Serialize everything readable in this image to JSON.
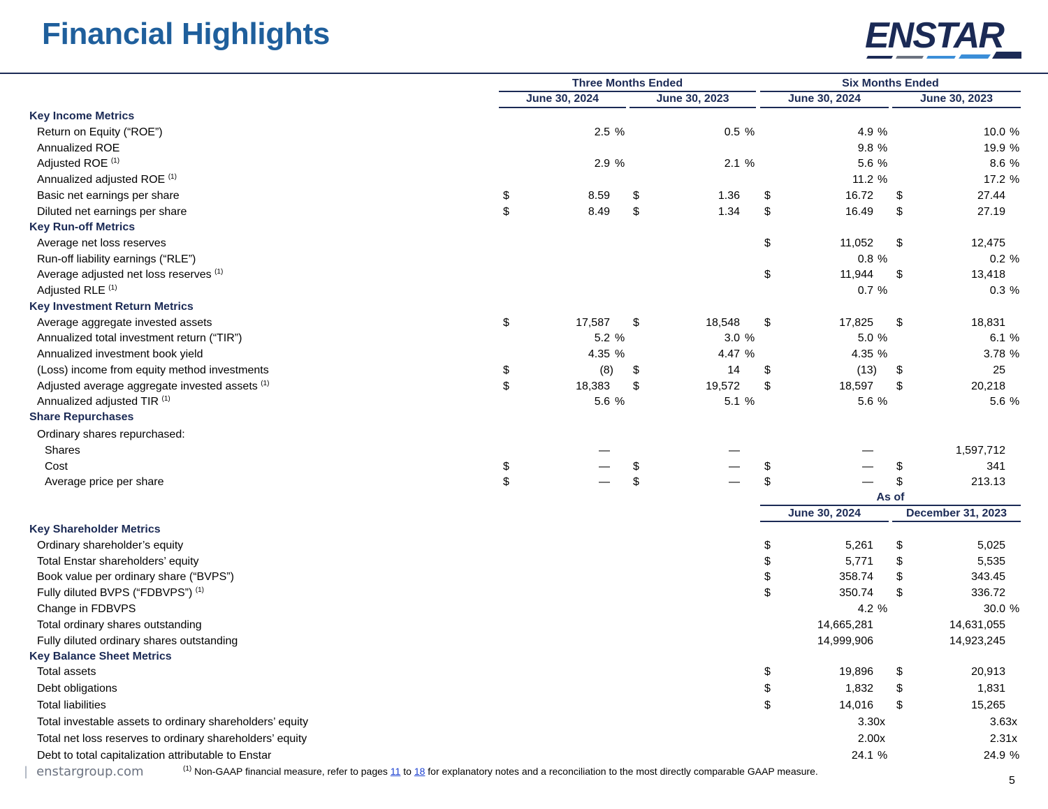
{
  "title": "Financial Highlights",
  "logo": {
    "text": "ENSTAR",
    "color": "#1b2a55",
    "accent": "#3b8ed8"
  },
  "headers": {
    "three_months": "Three Months Ended",
    "six_months": "Six Months Ended",
    "col1": "June 30, 2024",
    "col2": "June 30, 2023",
    "col3": "June 30, 2024",
    "col4": "June 30, 2023",
    "as_of": "As of",
    "as_of_col3": "June 30, 2024",
    "as_of_col4": "December 31, 2023"
  },
  "sections": [
    {
      "title": "Key Income Metrics",
      "rows": [
        {
          "label": "Return on Equity (“ROE”)",
          "sup": "",
          "indent": 1,
          "cells": [
            {
              "v": "2.5",
              "d": false,
              "p": true
            },
            {
              "v": "0.5",
              "d": false,
              "p": true
            },
            {
              "v": "4.9",
              "d": false,
              "p": true
            },
            {
              "v": "10.0",
              "d": false,
              "p": true
            }
          ]
        },
        {
          "label": "Annualized ROE",
          "sup": "",
          "indent": 1,
          "cells": [
            null,
            null,
            {
              "v": "9.8",
              "d": false,
              "p": true
            },
            {
              "v": "19.9",
              "d": false,
              "p": true
            }
          ]
        },
        {
          "label": "Adjusted ROE",
          "sup": "(1)",
          "indent": 1,
          "cells": [
            {
              "v": "2.9",
              "d": false,
              "p": true
            },
            {
              "v": "2.1",
              "d": false,
              "p": true
            },
            {
              "v": "5.6",
              "d": false,
              "p": true
            },
            {
              "v": "8.6",
              "d": false,
              "p": true
            }
          ]
        },
        {
          "label": "Annualized adjusted ROE",
          "sup": "(1)",
          "indent": 1,
          "cells": [
            null,
            null,
            {
              "v": "11.2",
              "d": false,
              "p": true
            },
            {
              "v": "17.2",
              "d": false,
              "p": true
            }
          ]
        },
        {
          "label": "Basic net earnings per share",
          "sup": "",
          "indent": 1,
          "cells": [
            {
              "v": "8.59",
              "d": true,
              "p": false
            },
            {
              "v": "1.36",
              "d": true,
              "p": false
            },
            {
              "v": "16.72",
              "d": true,
              "p": false
            },
            {
              "v": "27.44",
              "d": true,
              "p": false
            }
          ]
        },
        {
          "label": "Diluted net earnings per share",
          "sup": "",
          "indent": 1,
          "cells": [
            {
              "v": "8.49",
              "d": true,
              "p": false
            },
            {
              "v": "1.34",
              "d": true,
              "p": false
            },
            {
              "v": "16.49",
              "d": true,
              "p": false
            },
            {
              "v": "27.19",
              "d": true,
              "p": false
            }
          ]
        }
      ]
    },
    {
      "title": "Key Run-off Metrics",
      "rows": [
        {
          "label": "Average net loss reserves",
          "sup": "",
          "indent": 1,
          "cells": [
            null,
            null,
            {
              "v": "11,052",
              "d": true,
              "p": false
            },
            {
              "v": "12,475",
              "d": true,
              "p": false
            }
          ]
        },
        {
          "label": "Run-off liability earnings (“RLE”)",
          "sup": "",
          "indent": 1,
          "cells": [
            null,
            null,
            {
              "v": "0.8",
              "d": false,
              "p": true
            },
            {
              "v": "0.2",
              "d": false,
              "p": true
            }
          ]
        },
        {
          "label": "Average adjusted net loss reserves",
          "sup": "(1)",
          "indent": 1,
          "cells": [
            null,
            null,
            {
              "v": "11,944",
              "d": true,
              "p": false
            },
            {
              "v": "13,418",
              "d": true,
              "p": false
            }
          ]
        },
        {
          "label": "Adjusted RLE",
          "sup": "(1)",
          "indent": 1,
          "cells": [
            null,
            null,
            {
              "v": "0.7",
              "d": false,
              "p": true
            },
            {
              "v": "0.3",
              "d": false,
              "p": true
            }
          ]
        }
      ]
    },
    {
      "title": "Key Investment Return Metrics",
      "rows": [
        {
          "label": "Average aggregate invested assets",
          "sup": "",
          "indent": 1,
          "cells": [
            {
              "v": "17,587",
              "d": true,
              "p": false
            },
            {
              "v": "18,548",
              "d": true,
              "p": false
            },
            {
              "v": "17,825",
              "d": true,
              "p": false
            },
            {
              "v": "18,831",
              "d": true,
              "p": false
            }
          ]
        },
        {
          "label": "Annualized total investment return (“TIR”)",
          "sup": "",
          "indent": 1,
          "cells": [
            {
              "v": "5.2",
              "d": false,
              "p": true
            },
            {
              "v": "3.0",
              "d": false,
              "p": true
            },
            {
              "v": "5.0",
              "d": false,
              "p": true
            },
            {
              "v": "6.1",
              "d": false,
              "p": true
            }
          ]
        },
        {
          "label": "Annualized investment book yield",
          "sup": "",
          "indent": 1,
          "cells": [
            {
              "v": "4.35",
              "d": false,
              "p": true
            },
            {
              "v": "4.47",
              "d": false,
              "p": true
            },
            {
              "v": "4.35",
              "d": false,
              "p": true
            },
            {
              "v": "3.78",
              "d": false,
              "p": true
            }
          ]
        },
        {
          "label": "(Loss) income from equity method investments",
          "sup": "",
          "indent": 1,
          "cells": [
            {
              "v": "(8)",
              "d": true,
              "p": false,
              "paren": true
            },
            {
              "v": "14",
              "d": true,
              "p": false
            },
            {
              "v": "(13)",
              "d": true,
              "p": false,
              "paren": true
            },
            {
              "v": "25",
              "d": true,
              "p": false
            }
          ]
        },
        {
          "label": "Adjusted average aggregate invested assets",
          "sup": "(1)",
          "indent": 1,
          "cells": [
            {
              "v": "18,383",
              "d": true,
              "p": false
            },
            {
              "v": "19,572",
              "d": true,
              "p": false
            },
            {
              "v": "18,597",
              "d": true,
              "p": false
            },
            {
              "v": "20,218",
              "d": true,
              "p": false
            }
          ]
        },
        {
          "label": "Annualized adjusted TIR",
          "sup": "(1)",
          "indent": 1,
          "cells": [
            {
              "v": "5.6",
              "d": false,
              "p": true
            },
            {
              "v": "5.1",
              "d": false,
              "p": true
            },
            {
              "v": "5.6",
              "d": false,
              "p": true
            },
            {
              "v": "5.6",
              "d": false,
              "p": true
            }
          ]
        }
      ]
    },
    {
      "title": "Share Repurchases",
      "rows": [
        {
          "label": "Ordinary shares repurchased:",
          "sup": "",
          "indent": 1,
          "cells": [
            null,
            null,
            null,
            null
          ]
        },
        {
          "label": "Shares",
          "sup": "",
          "indent": 2,
          "cells": [
            {
              "v": "—",
              "d": false,
              "p": false
            },
            {
              "v": "—",
              "d": false,
              "p": false
            },
            {
              "v": "—",
              "d": false,
              "p": false
            },
            {
              "v": "1,597,712",
              "d": false,
              "p": false
            }
          ]
        },
        {
          "label": "Cost",
          "sup": "",
          "indent": 2,
          "cells": [
            {
              "v": "—",
              "d": true,
              "p": false
            },
            {
              "v": "—",
              "d": true,
              "p": false
            },
            {
              "v": "—",
              "d": true,
              "p": false
            },
            {
              "v": "341",
              "d": true,
              "p": false
            }
          ]
        },
        {
          "label": "Average price per share",
          "sup": "",
          "indent": 2,
          "cells": [
            {
              "v": "—",
              "d": true,
              "p": false
            },
            {
              "v": "—",
              "d": true,
              "p": false
            },
            {
              "v": "—",
              "d": true,
              "p": false
            },
            {
              "v": "213.13",
              "d": true,
              "p": false
            }
          ]
        }
      ]
    },
    {
      "title": "Key Shareholder Metrics",
      "rows": [
        {
          "label": "Ordinary shareholder’s equity",
          "sup": "",
          "indent": 1,
          "cells": [
            null,
            null,
            {
              "v": "5,261",
              "d": true,
              "p": false
            },
            {
              "v": "5,025",
              "d": true,
              "p": false
            }
          ]
        },
        {
          "label": "Total Enstar shareholders’ equity",
          "sup": "",
          "indent": 1,
          "cells": [
            null,
            null,
            {
              "v": "5,771",
              "d": true,
              "p": false
            },
            {
              "v": "5,535",
              "d": true,
              "p": false
            }
          ]
        },
        {
          "label": "Book value per ordinary share (“BVPS”)",
          "sup": "",
          "indent": 1,
          "cells": [
            null,
            null,
            {
              "v": "358.74",
              "d": true,
              "p": false
            },
            {
              "v": "343.45",
              "d": true,
              "p": false
            }
          ]
        },
        {
          "label": "Fully diluted BVPS (“FDBVPS”)",
          "sup": "(1)",
          "indent": 1,
          "cells": [
            null,
            null,
            {
              "v": "350.74",
              "d": true,
              "p": false
            },
            {
              "v": "336.72",
              "d": true,
              "p": false
            }
          ]
        },
        {
          "label": "Change in FDBVPS",
          "sup": "",
          "indent": 1,
          "cells": [
            null,
            null,
            {
              "v": "4.2",
              "d": false,
              "p": true
            },
            {
              "v": "30.0",
              "d": false,
              "p": true
            }
          ]
        },
        {
          "label": "Total ordinary shares outstanding",
          "sup": "",
          "indent": 1,
          "cells": [
            null,
            null,
            {
              "v": "14,665,281",
              "d": false,
              "p": false
            },
            {
              "v": "14,631,055",
              "d": false,
              "p": false
            }
          ]
        },
        {
          "label": "Fully diluted ordinary shares outstanding",
          "sup": "",
          "indent": 1,
          "cells": [
            null,
            null,
            {
              "v": "14,999,906",
              "d": false,
              "p": false
            },
            {
              "v": "14,923,245",
              "d": false,
              "p": false
            }
          ]
        }
      ]
    },
    {
      "title": "Key Balance Sheet Metrics",
      "rows": [
        {
          "label": "Total assets",
          "sup": "",
          "indent": 1,
          "cells": [
            null,
            null,
            {
              "v": "19,896",
              "d": true,
              "p": false
            },
            {
              "v": "20,913",
              "d": true,
              "p": false
            }
          ]
        },
        {
          "label": "Debt obligations",
          "sup": "",
          "indent": 1,
          "cells": [
            null,
            null,
            {
              "v": "1,832",
              "d": true,
              "p": false
            },
            {
              "v": "1,831",
              "d": true,
              "p": false
            }
          ]
        },
        {
          "label": "Total liabilities",
          "sup": "",
          "indent": 1,
          "cells": [
            null,
            null,
            {
              "v": "14,016",
              "d": true,
              "p": false
            },
            {
              "v": "15,265",
              "d": true,
              "p": false
            }
          ]
        },
        {
          "label": "Total investable assets to ordinary shareholders’ equity",
          "sup": "",
          "indent": 1,
          "cells": [
            null,
            null,
            {
              "v": "3.30x",
              "d": false,
              "p": false,
              "x": true
            },
            {
              "v": "3.63x",
              "d": false,
              "p": false,
              "x": true
            }
          ]
        },
        {
          "label": "Total net loss reserves to ordinary shareholders’ equity",
          "sup": "",
          "indent": 1,
          "cells": [
            null,
            null,
            {
              "v": "2.00x",
              "d": false,
              "p": false,
              "x": true
            },
            {
              "v": "2.31x",
              "d": false,
              "p": false,
              "x": true
            }
          ]
        },
        {
          "label": "Debt to total capitalization attributable to Enstar",
          "sup": "",
          "indent": 1,
          "cells": [
            null,
            null,
            {
              "v": "24.1",
              "d": false,
              "p": true
            },
            {
              "v": "24.9",
              "d": false,
              "p": true
            }
          ]
        }
      ]
    }
  ],
  "symbols": {
    "dollar": "$",
    "percent": "%"
  },
  "footer": {
    "site": "enstargroup.com",
    "bar": "|",
    "note_sup": "(1)",
    "note_pre": "Non-GAAP financial measure, refer to pages",
    "link1": "11",
    "note_mid": "to",
    "link2": "18",
    "note_post": "for explanatory notes and a reconciliation to the most directly comparable GAAP measure.",
    "page": "5"
  }
}
